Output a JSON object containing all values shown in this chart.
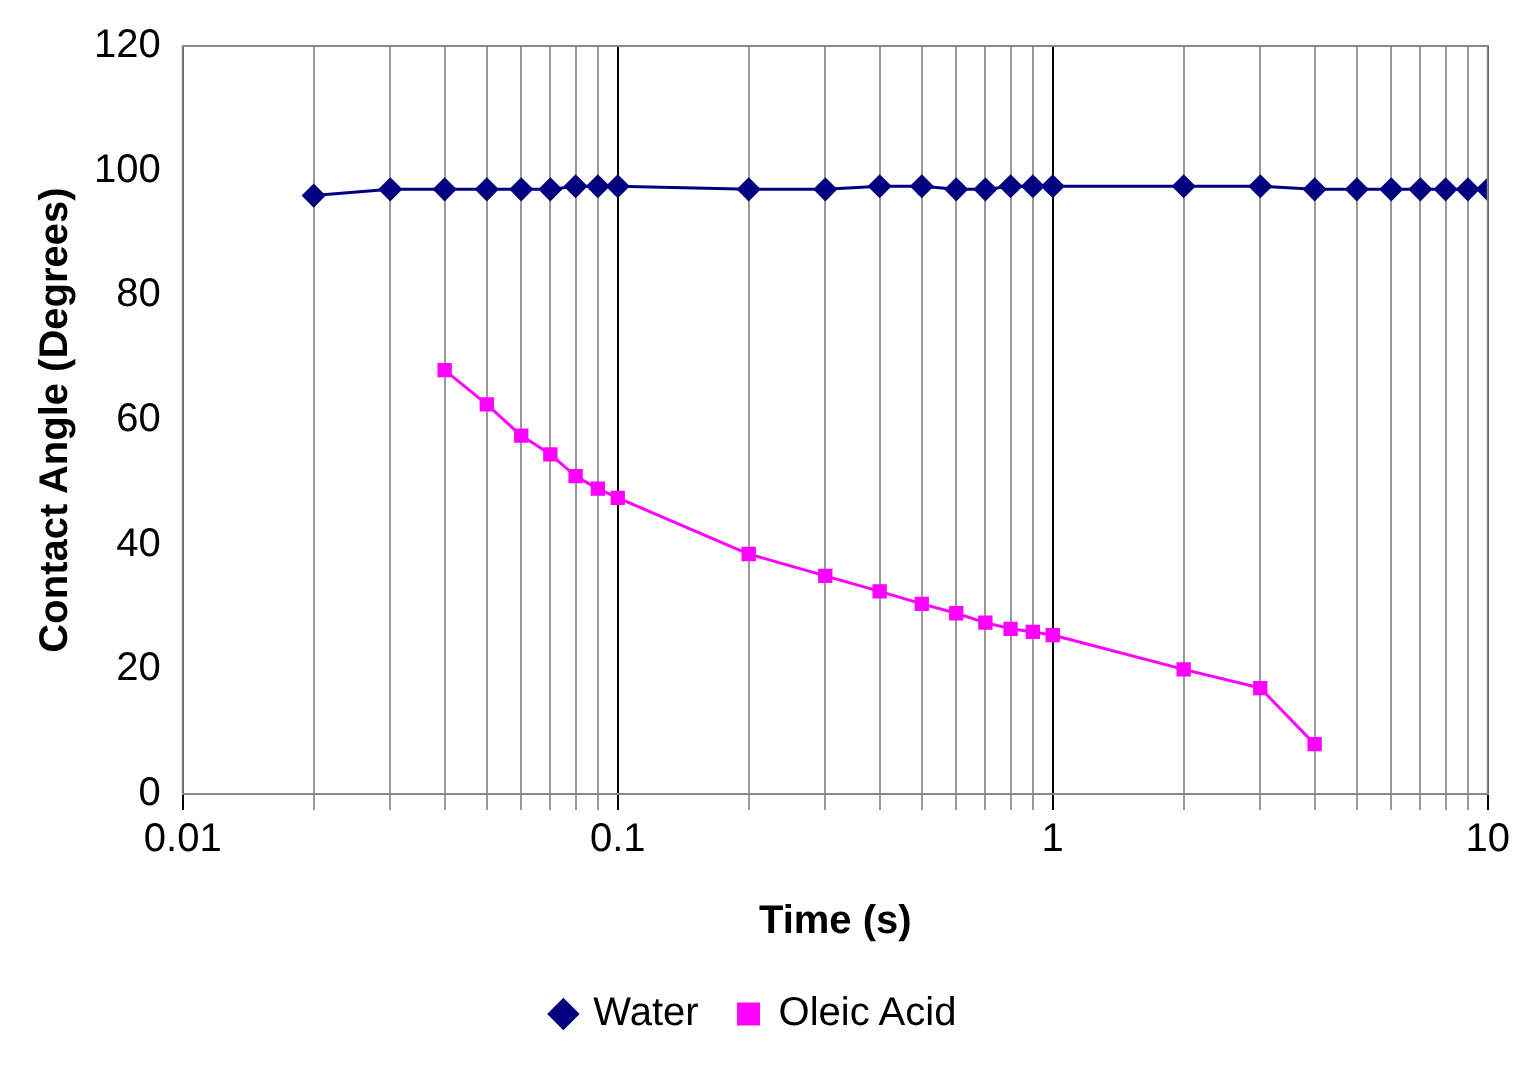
{
  "chart_data": {
    "type": "line",
    "xlabel": "Time (s)",
    "ylabel": "Contact Angle (Degrees)",
    "log": "x",
    "grid": "x",
    "legend": "bottom",
    "xlim": [
      0.01,
      10
    ],
    "ylim": [
      0,
      120
    ],
    "xticks": [
      {
        "value": 0.01,
        "label": "0.01"
      },
      {
        "value": 0.02,
        "label": null
      },
      {
        "value": 0.03,
        "label": null
      },
      {
        "value": 0.04,
        "label": null
      },
      {
        "value": 0.05,
        "label": null
      },
      {
        "value": 0.06,
        "label": null
      },
      {
        "value": 0.07,
        "label": null
      },
      {
        "value": 0.08,
        "label": null
      },
      {
        "value": 0.09,
        "label": null
      },
      {
        "value": 0.1,
        "label": "0.1"
      },
      {
        "value": 0.2,
        "label": null
      },
      {
        "value": 0.3,
        "label": null
      },
      {
        "value": 0.4,
        "label": null
      },
      {
        "value": 0.5,
        "label": null
      },
      {
        "value": 0.6,
        "label": null
      },
      {
        "value": 0.7,
        "label": null
      },
      {
        "value": 0.8,
        "label": null
      },
      {
        "value": 0.9,
        "label": null
      },
      {
        "value": 1,
        "label": "1"
      },
      {
        "value": 2,
        "label": null
      },
      {
        "value": 3,
        "label": null
      },
      {
        "value": 4,
        "label": null
      },
      {
        "value": 5,
        "label": null
      },
      {
        "value": 6,
        "label": null
      },
      {
        "value": 7,
        "label": null
      },
      {
        "value": 8,
        "label": null
      },
      {
        "value": 9,
        "label": null
      },
      {
        "value": 10,
        "label": "10"
      }
    ],
    "yticks": [
      0,
      20,
      40,
      60,
      80,
      100,
      120
    ],
    "series": [
      {
        "name": "Water",
        "color": "#000080",
        "marker": "diamond",
        "x": [
          0.02,
          0.03,
          0.04,
          0.05,
          0.06,
          0.07,
          0.08,
          0.09,
          0.1,
          0.2,
          0.3,
          0.4,
          0.5,
          0.6,
          0.7,
          0.8,
          0.9,
          1,
          2,
          3,
          4,
          5,
          6,
          7,
          8,
          9,
          10
        ],
        "values": [
          96,
          97,
          97,
          97,
          97,
          97,
          97.5,
          97.5,
          97.5,
          97,
          97,
          97.5,
          97.5,
          97,
          97,
          97.5,
          97.5,
          97.5,
          97.5,
          97.5,
          97,
          97,
          97,
          97,
          97,
          97,
          97
        ]
      },
      {
        "name": "Oleic Acid",
        "color": "#ff00ff",
        "marker": "square",
        "x": [
          0.04,
          0.05,
          0.06,
          0.07,
          0.08,
          0.09,
          0.1,
          0.2,
          0.3,
          0.4,
          0.5,
          0.6,
          0.7,
          0.8,
          0.9,
          1,
          2,
          3,
          4
        ],
        "values": [
          68,
          62.5,
          57.5,
          54.5,
          51,
          49,
          47.5,
          38.5,
          35,
          32.5,
          30.5,
          29,
          27.5,
          26.5,
          26,
          25.5,
          20,
          17,
          8
        ]
      }
    ]
  }
}
